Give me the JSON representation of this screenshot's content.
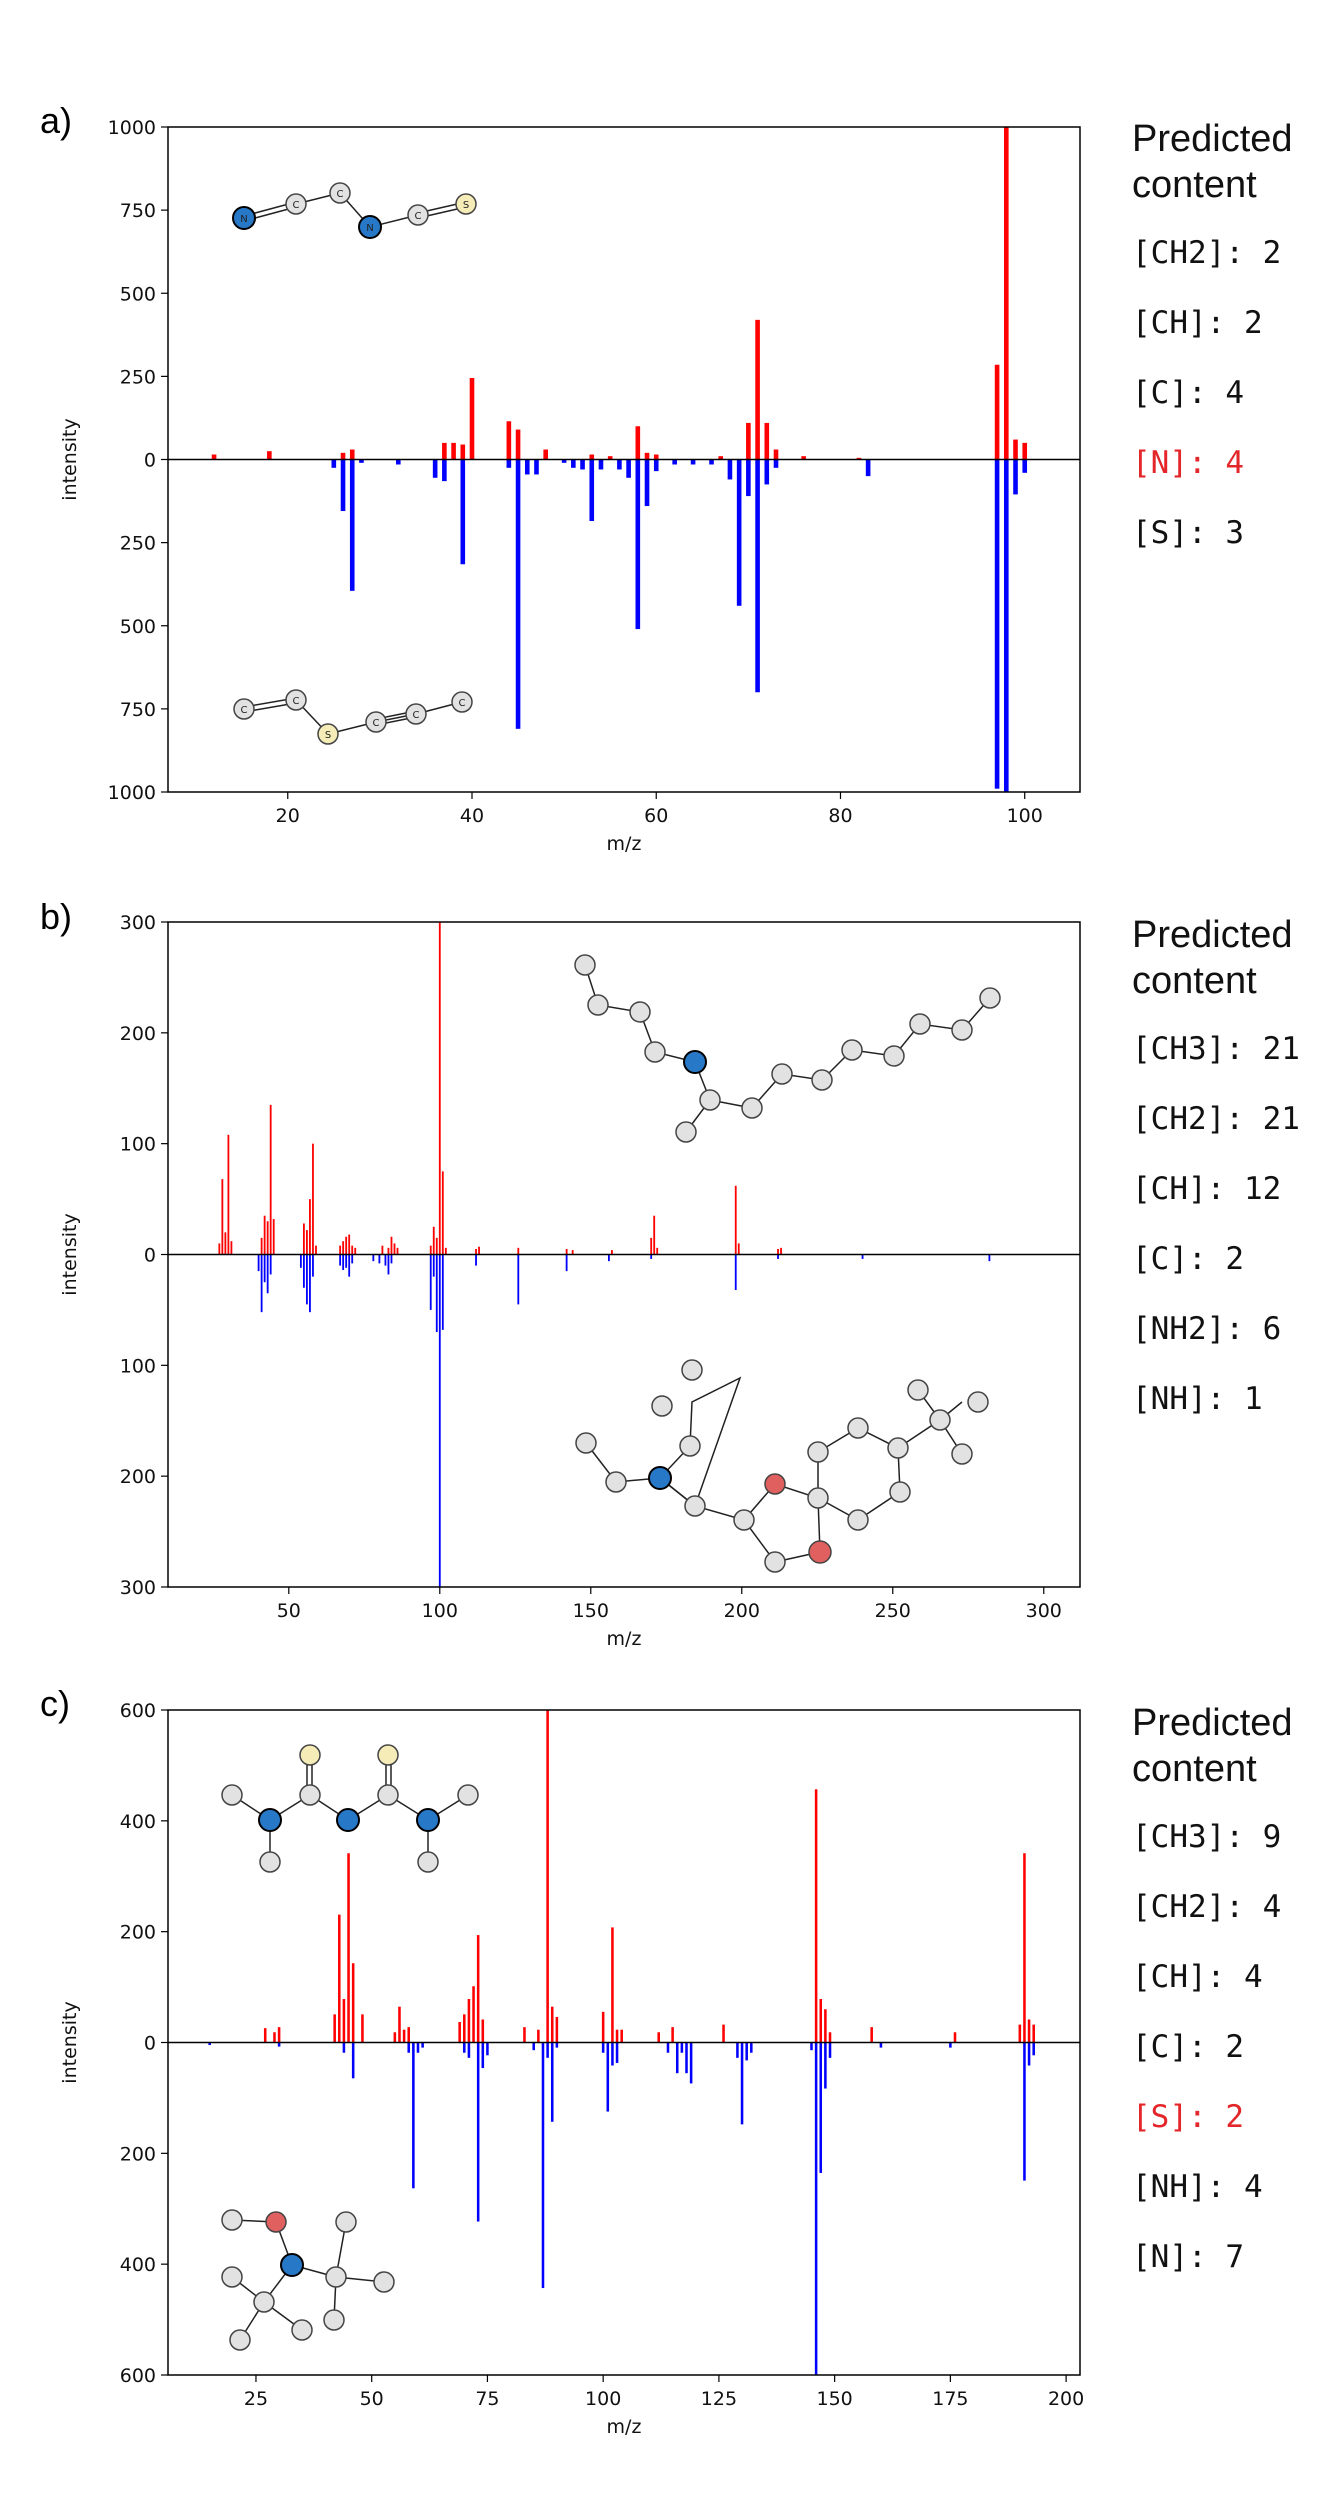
{
  "colors": {
    "predicted": "#ff0000",
    "reference": "#0000ff",
    "highlight": "#e3262a",
    "carbon": "#e2e2e2",
    "nitrogen": "#2878c8",
    "oxygen": "#e06060",
    "sulfur": "#f5ecb8"
  },
  "icons": [
    "molecule-structure-icon"
  ],
  "panels": [
    {
      "label": "a)",
      "side_title": "Predicted content",
      "items": [
        {
          "text": "[CH2]: 2",
          "highlight": false
        },
        {
          "text": "[CH]: 2",
          "highlight": false
        },
        {
          "text": "[C]: 4",
          "highlight": false
        },
        {
          "text": "[N]: 4",
          "highlight": true
        },
        {
          "text": "[S]: 3",
          "highlight": false
        }
      ]
    },
    {
      "label": "b)",
      "side_title": "Predicted content",
      "items": [
        {
          "text": "[CH3]: 21",
          "highlight": false
        },
        {
          "text": "[CH2]: 21",
          "highlight": false
        },
        {
          "text": "[CH]: 12",
          "highlight": false
        },
        {
          "text": "[C]: 2",
          "highlight": false
        },
        {
          "text": "[NH2]: 6",
          "highlight": false
        },
        {
          "text": "[NH]: 1",
          "highlight": false
        }
      ]
    },
    {
      "label": "c)",
      "side_title": "Predicted content",
      "items": [
        {
          "text": "[CH3]: 9",
          "highlight": false
        },
        {
          "text": "[CH2]: 4",
          "highlight": false
        },
        {
          "text": "[CH]: 4",
          "highlight": false
        },
        {
          "text": "[C]: 2",
          "highlight": false
        },
        {
          "text": "[S]: 2",
          "highlight": true
        },
        {
          "text": "[NH]: 4",
          "highlight": false
        },
        {
          "text": "[N]: 7",
          "highlight": false
        }
      ]
    }
  ],
  "chart_data": [
    {
      "type": "bar",
      "title": "",
      "xlabel": "m/z",
      "ylabel": "intensity",
      "xlim": [
        7,
        106
      ],
      "ylim": [
        -1000,
        1000
      ],
      "xticks": [
        20,
        40,
        60,
        80,
        100
      ],
      "yticks": [
        1000,
        750,
        500,
        250,
        0,
        250,
        500,
        750,
        1000
      ],
      "bar_width": 0.5,
      "series": [
        {
          "values": [
            [
              12,
              15
            ],
            [
              18,
              25
            ],
            [
              26,
              20
            ],
            [
              27,
              30
            ],
            [
              37,
              50
            ],
            [
              38,
              50
            ],
            [
              39,
              45
            ],
            [
              40,
              245
            ],
            [
              44,
              115
            ],
            [
              45,
              90
            ],
            [
              48,
              30
            ],
            [
              53,
              15
            ],
            [
              55,
              10
            ],
            [
              58,
              100
            ],
            [
              59,
              20
            ],
            [
              60,
              15
            ],
            [
              67,
              10
            ],
            [
              70,
              110
            ],
            [
              71,
              420
            ],
            [
              72,
              110
            ],
            [
              73,
              30
            ],
            [
              76,
              10
            ],
            [
              82,
              5
            ],
            [
              97,
              285
            ],
            [
              98,
              1000
            ],
            [
              99,
              60
            ],
            [
              100,
              50
            ]
          ]
        },
        {
          "values": [
            [
              25,
              -25
            ],
            [
              26,
              -155
            ],
            [
              27,
              -395
            ],
            [
              28,
              -10
            ],
            [
              32,
              -15
            ],
            [
              36,
              -55
            ],
            [
              37,
              -65
            ],
            [
              39,
              -315
            ],
            [
              44,
              -25
            ],
            [
              45,
              -810
            ],
            [
              46,
              -45
            ],
            [
              47,
              -45
            ],
            [
              50,
              -10
            ],
            [
              51,
              -25
            ],
            [
              52,
              -30
            ],
            [
              53,
              -185
            ],
            [
              54,
              -30
            ],
            [
              56,
              -30
            ],
            [
              57,
              -55
            ],
            [
              58,
              -510
            ],
            [
              59,
              -140
            ],
            [
              60,
              -35
            ],
            [
              62,
              -15
            ],
            [
              64,
              -15
            ],
            [
              66,
              -15
            ],
            [
              68,
              -60
            ],
            [
              69,
              -440
            ],
            [
              70,
              -110
            ],
            [
              71,
              -700
            ],
            [
              72,
              -75
            ],
            [
              73,
              -25
            ],
            [
              83,
              -50
            ],
            [
              97,
              -990
            ],
            [
              98,
              -1000
            ],
            [
              99,
              -105
            ],
            [
              100,
              -40
            ]
          ]
        }
      ]
    },
    {
      "type": "bar",
      "title": "",
      "xlabel": "m/z",
      "ylabel": "intensity",
      "xlim": [
        10,
        312
      ],
      "ylim": [
        -300,
        300
      ],
      "xticks": [
        50,
        100,
        150,
        200,
        250,
        300
      ],
      "yticks": [
        300,
        200,
        100,
        0,
        100,
        200,
        300
      ],
      "bar_width": 0.6,
      "series": [
        {
          "values": [
            [
              27,
              10
            ],
            [
              28,
              68
            ],
            [
              29,
              20
            ],
            [
              30,
              108
            ],
            [
              31,
              12
            ],
            [
              41,
              15
            ],
            [
              42,
              35
            ],
            [
              43,
              30
            ],
            [
              44,
              135
            ],
            [
              45,
              32
            ],
            [
              55,
              28
            ],
            [
              56,
              22
            ],
            [
              57,
              50
            ],
            [
              58,
              100
            ],
            [
              59,
              8
            ],
            [
              67,
              8
            ],
            [
              68,
              12
            ],
            [
              69,
              16
            ],
            [
              70,
              18
            ],
            [
              71,
              8
            ],
            [
              72,
              6
            ],
            [
              81,
              8
            ],
            [
              83,
              6
            ],
            [
              84,
              16
            ],
            [
              85,
              10
            ],
            [
              86,
              6
            ],
            [
              97,
              8
            ],
            [
              98,
              25
            ],
            [
              99,
              15
            ],
            [
              100,
              300
            ],
            [
              101,
              75
            ],
            [
              102,
              6
            ],
            [
              112,
              5
            ],
            [
              113,
              7
            ],
            [
              126,
              6
            ],
            [
              142,
              5
            ],
            [
              144,
              4
            ],
            [
              157,
              4
            ],
            [
              170,
              15
            ],
            [
              171,
              35
            ],
            [
              172,
              6
            ],
            [
              198,
              62
            ],
            [
              199,
              10
            ],
            [
              212,
              5
            ],
            [
              213,
              6
            ]
          ]
        },
        {
          "values": [
            [
              40,
              -15
            ],
            [
              41,
              -52
            ],
            [
              42,
              -25
            ],
            [
              43,
              -35
            ],
            [
              44,
              -18
            ],
            [
              54,
              -12
            ],
            [
              55,
              -30
            ],
            [
              56,
              -45
            ],
            [
              57,
              -52
            ],
            [
              58,
              -20
            ],
            [
              67,
              -10
            ],
            [
              68,
              -14
            ],
            [
              69,
              -12
            ],
            [
              70,
              -20
            ],
            [
              71,
              -8
            ],
            [
              78,
              -6
            ],
            [
              80,
              -8
            ],
            [
              82,
              -10
            ],
            [
              83,
              -18
            ],
            [
              84,
              -8
            ],
            [
              97,
              -50
            ],
            [
              98,
              -20
            ],
            [
              99,
              -70
            ],
            [
              100,
              -300
            ],
            [
              101,
              -68
            ],
            [
              112,
              -10
            ],
            [
              126,
              -45
            ],
            [
              142,
              -15
            ],
            [
              156,
              -6
            ],
            [
              170,
              -4
            ],
            [
              198,
              -32
            ],
            [
              212,
              -4
            ],
            [
              240,
              -4
            ],
            [
              282,
              -6
            ]
          ]
        }
      ]
    },
    {
      "type": "bar",
      "title": "",
      "xlabel": "m/z",
      "ylabel": "intensity",
      "xlim": [
        6,
        203
      ],
      "ylim": [
        -650,
        650
      ],
      "xticks": [
        25,
        50,
        75,
        100,
        125,
        150,
        175,
        200
      ],
      "yticks": [
        600,
        400,
        200,
        0,
        200,
        400,
        600
      ],
      "bar_width": 0.55,
      "series": [
        {
          "values": [
            [
              27,
              28
            ],
            [
              29,
              20
            ],
            [
              30,
              30
            ],
            [
              42,
              55
            ],
            [
              43,
              250
            ],
            [
              44,
              85
            ],
            [
              45,
              370
            ],
            [
              46,
              155
            ],
            [
              48,
              55
            ],
            [
              55,
              20
            ],
            [
              56,
              70
            ],
            [
              57,
              25
            ],
            [
              58,
              30
            ],
            [
              69,
              40
            ],
            [
              70,
              55
            ],
            [
              71,
              85
            ],
            [
              72,
              110
            ],
            [
              73,
              210
            ],
            [
              74,
              45
            ],
            [
              83,
              30
            ],
            [
              86,
              25
            ],
            [
              88,
              650
            ],
            [
              89,
              70
            ],
            [
              90,
              50
            ],
            [
              100,
              60
            ],
            [
              102,
              225
            ],
            [
              103,
              25
            ],
            [
              104,
              25
            ],
            [
              112,
              20
            ],
            [
              115,
              30
            ],
            [
              126,
              35
            ],
            [
              146,
              495
            ],
            [
              147,
              85
            ],
            [
              148,
              65
            ],
            [
              149,
              20
            ],
            [
              158,
              30
            ],
            [
              176,
              20
            ],
            [
              190,
              35
            ],
            [
              191,
              370
            ],
            [
              192,
              45
            ],
            [
              193,
              35
            ]
          ]
        },
        {
          "values": [
            [
              15,
              -5
            ],
            [
              30,
              -8
            ],
            [
              44,
              -20
            ],
            [
              46,
              -70
            ],
            [
              58,
              -20
            ],
            [
              59,
              -285
            ],
            [
              60,
              -20
            ],
            [
              61,
              -10
            ],
            [
              70,
              -20
            ],
            [
              71,
              -30
            ],
            [
              73,
              -350
            ],
            [
              74,
              -50
            ],
            [
              75,
              -25
            ],
            [
              85,
              -15
            ],
            [
              87,
              -480
            ],
            [
              88,
              -30
            ],
            [
              89,
              -155
            ],
            [
              90,
              -10
            ],
            [
              100,
              -20
            ],
            [
              101,
              -135
            ],
            [
              102,
              -45
            ],
            [
              103,
              -40
            ],
            [
              114,
              -20
            ],
            [
              116,
              -60
            ],
            [
              117,
              -20
            ],
            [
              118,
              -60
            ],
            [
              119,
              -80
            ],
            [
              129,
              -30
            ],
            [
              130,
              -160
            ],
            [
              131,
              -35
            ],
            [
              132,
              -20
            ],
            [
              145,
              -15
            ],
            [
              146,
              -650
            ],
            [
              147,
              -255
            ],
            [
              148,
              -90
            ],
            [
              149,
              -30
            ],
            [
              160,
              -10
            ],
            [
              175,
              -10
            ],
            [
              191,
              -270
            ],
            [
              192,
              -45
            ],
            [
              193,
              -25
            ]
          ]
        }
      ]
    }
  ]
}
